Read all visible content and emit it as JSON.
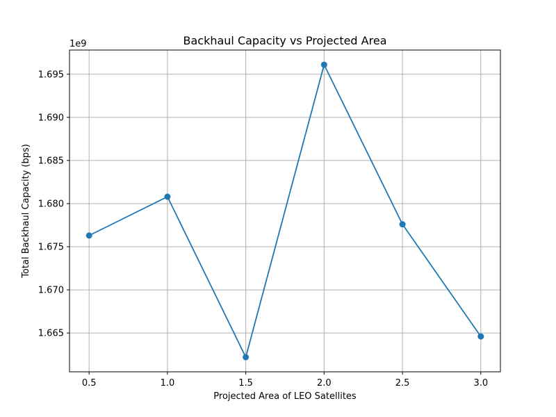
{
  "chart_data": {
    "type": "line",
    "title": "Backhaul Capacity vs Projected Area",
    "xlabel": "Projected Area of LEO Satellites",
    "ylabel": "Total Backhaul Capacity (bps)",
    "y_offset_label": "1e9",
    "x": [
      0.5,
      1.0,
      1.5,
      2.0,
      2.5,
      3.0
    ],
    "series": [
      {
        "values": [
          1676300000,
          1680800000,
          1662200000,
          1696100000,
          1677600000,
          1664600000
        ]
      }
    ],
    "x_ticks": [
      "0.5",
      "1.0",
      "1.5",
      "2.0",
      "2.5",
      "3.0"
    ],
    "y_ticks": [
      "1.665",
      "1.670",
      "1.675",
      "1.680",
      "1.685",
      "1.690",
      "1.695"
    ],
    "xlim": [
      0.375,
      3.125
    ],
    "ylim": [
      1660500000,
      1697800000
    ],
    "grid": true,
    "marker": "circle",
    "colors": {
      "series": "#1f77b4",
      "grid": "#b0b0b0",
      "axes": "#000000"
    }
  }
}
